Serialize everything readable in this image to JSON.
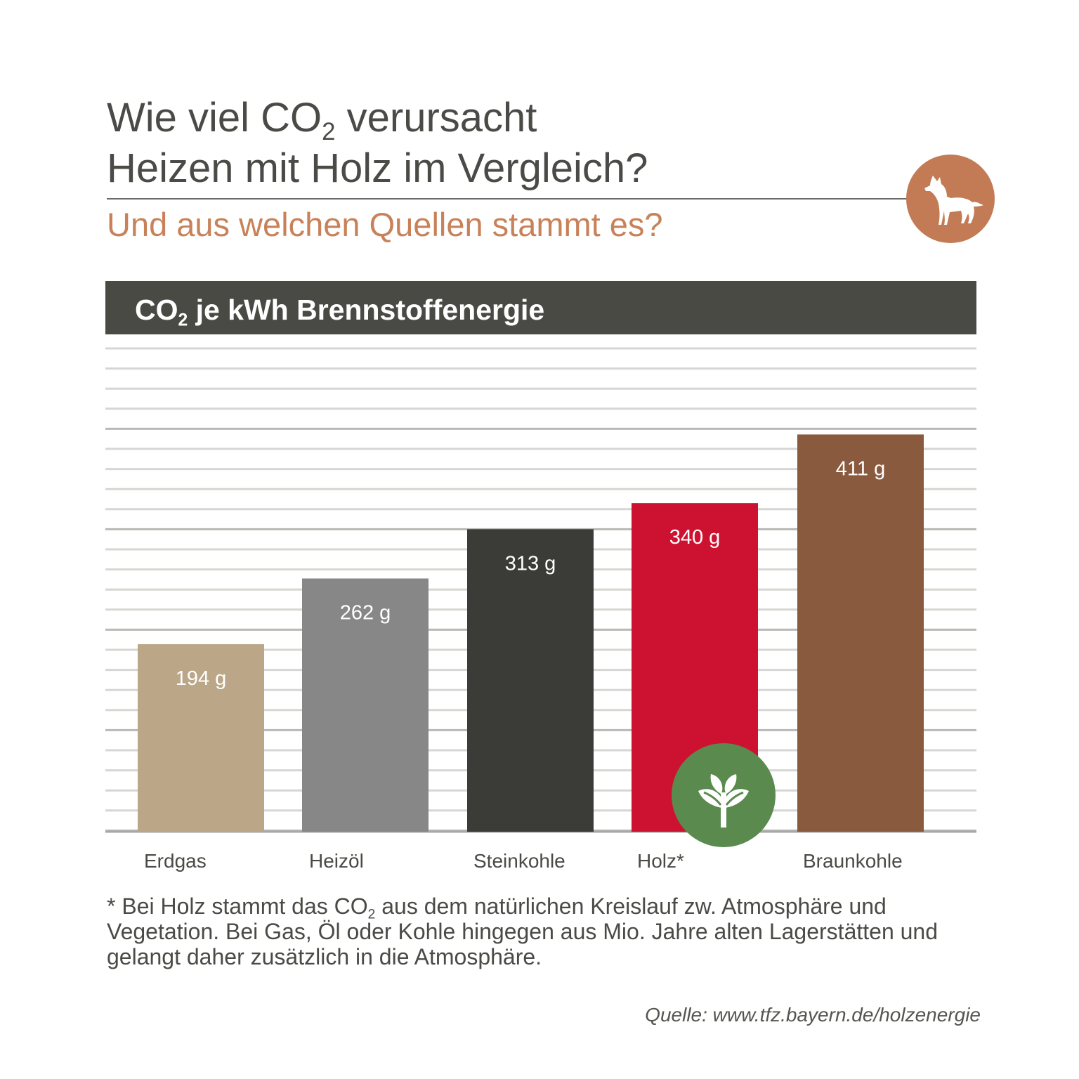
{
  "header": {
    "title_line1_pre": "Wie viel CO",
    "title_sub": "2",
    "title_line1_post": " verursacht",
    "title_line2": "Heizen mit Holz im Vergleich?",
    "subtitle": "Und aus welchen Quellen stammt es?"
  },
  "chart_data": {
    "type": "bar",
    "title_pre": "CO",
    "title_sub": "2",
    "title_post": " je kWh Brennstoffenergie",
    "categories": [
      "Erdgas",
      "Heizöl",
      "Steinkohle",
      "Holz*",
      "Braunkohle"
    ],
    "values": [
      194,
      262,
      313,
      340,
      411
    ],
    "value_labels": [
      "194 g",
      "262 g",
      "313 g",
      "340 g",
      "411 g"
    ],
    "unit": "g",
    "ylim": [
      0,
      500
    ],
    "grid": true,
    "colors": [
      "#bba788",
      "#878787",
      "#3b3b37",
      "#cc1230",
      "#8a5a3e"
    ]
  },
  "footnote": {
    "pre": "* Bei Holz stammt das CO",
    "sub": "2",
    "post": " aus dem natürlichen Kreislauf zw. Atmosphäre und Vegetation. Bei Gas, Öl oder Kohle hingegen aus Mio. Jahre alten Lagerstätten und gelangt daher zusätzlich in die Atmosphäre."
  },
  "source": "Quelle: www.tfz.bayern.de/holzenergie",
  "icons": {
    "logo": "wolf-icon",
    "leaf": "sprout-icon"
  },
  "colors": {
    "accent": "#c8825a",
    "logo_bg": "#c27b55",
    "header_bg": "#4a4a45",
    "leaf_bg": "#5a8a4e",
    "grid": "#cfcfcb"
  }
}
